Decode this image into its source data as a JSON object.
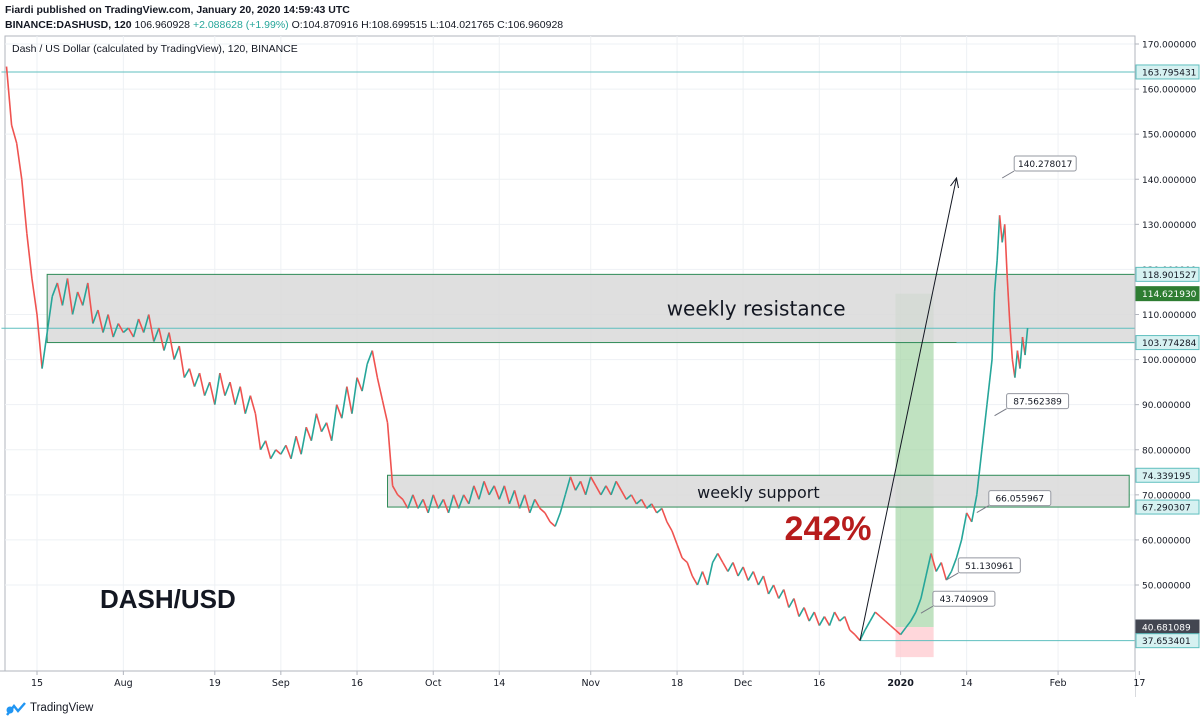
{
  "header": {
    "published": "Fiardi published on TradingView.com, January 20, 2020 14:59:43 UTC",
    "symbol": "BINANCE:DASHUSD, 120",
    "last": "106.960928",
    "change": "+2.088628 (+1.99%)",
    "open": "O:104.870916",
    "high": "H:108.699515",
    "low": "L:104.021765",
    "close": "C:106.960928"
  },
  "footer": {
    "brand": "TradingView"
  },
  "chart_data": {
    "type": "line",
    "title": "Dash / US Dollar (calculated by TradingView), 120, BINANCE",
    "pair_label": "DASH/USD",
    "ylim": [
      34,
      172
    ],
    "x_ticks": [
      {
        "label": "15",
        "day": 0
      },
      {
        "label": "Aug",
        "day": 17
      },
      {
        "label": "19",
        "day": 35
      },
      {
        "label": "Sep",
        "day": 48
      },
      {
        "label": "16",
        "day": 63
      },
      {
        "label": "Oct",
        "day": 78
      },
      {
        "label": "14",
        "day": 91
      },
      {
        "label": "Nov",
        "day": 109
      },
      {
        "label": "18",
        "day": 126
      },
      {
        "label": "Dec",
        "day": 139
      },
      {
        "label": "16",
        "day": 154
      },
      {
        "label": "2020",
        "day": 170
      },
      {
        "label": "14",
        "day": 183
      },
      {
        "label": "Feb",
        "day": 201
      },
      {
        "label": "17",
        "day": 217
      }
    ],
    "y_ticks": [
      170,
      160,
      150,
      140,
      130,
      120,
      110,
      100,
      90,
      80,
      70,
      60,
      50
    ],
    "y_tick_labels": [
      "170.000000",
      "160.000000",
      "150.000000",
      "140.000000",
      "130.000000",
      "120.000000",
      "110.000000",
      "100.000000",
      "90.000000",
      "80.000000",
      "70.000000",
      "60.000000",
      "50.000000"
    ],
    "series": [
      {
        "points": [
          [
            -6,
            165
          ],
          [
            -5,
            152
          ],
          [
            -4,
            148
          ],
          [
            -3,
            140
          ],
          [
            -2,
            128
          ],
          [
            -1,
            118
          ],
          [
            0,
            110
          ],
          [
            1,
            98
          ],
          [
            2,
            106
          ],
          [
            3,
            114
          ],
          [
            4,
            117
          ],
          [
            5,
            112
          ],
          [
            6,
            118
          ],
          [
            7,
            110
          ],
          [
            8,
            115
          ],
          [
            9,
            112
          ],
          [
            10,
            117
          ],
          [
            11,
            108
          ],
          [
            12,
            111
          ],
          [
            13,
            106
          ],
          [
            14,
            110
          ],
          [
            15,
            105
          ],
          [
            16,
            108
          ],
          [
            17,
            106
          ],
          [
            18,
            107
          ],
          [
            19,
            105
          ],
          [
            20,
            109
          ],
          [
            21,
            106
          ],
          [
            22,
            110
          ],
          [
            23,
            104
          ],
          [
            24,
            107
          ],
          [
            25,
            102
          ],
          [
            26,
            106
          ],
          [
            27,
            100
          ],
          [
            28,
            103
          ],
          [
            29,
            96
          ],
          [
            30,
            98
          ],
          [
            31,
            94
          ],
          [
            32,
            97
          ],
          [
            33,
            92
          ],
          [
            34,
            95
          ],
          [
            35,
            90
          ],
          [
            36,
            97
          ],
          [
            37,
            92
          ],
          [
            38,
            95
          ],
          [
            39,
            90
          ],
          [
            40,
            94
          ],
          [
            41,
            88
          ],
          [
            42,
            92
          ],
          [
            43,
            88
          ],
          [
            44,
            80
          ],
          [
            45,
            82
          ],
          [
            46,
            78
          ],
          [
            47,
            80
          ],
          [
            48,
            79
          ],
          [
            49,
            81
          ],
          [
            50,
            78
          ],
          [
            51,
            83
          ],
          [
            52,
            79
          ],
          [
            53,
            85
          ],
          [
            54,
            82
          ],
          [
            55,
            88
          ],
          [
            56,
            84
          ],
          [
            57,
            86
          ],
          [
            58,
            82
          ],
          [
            59,
            90
          ],
          [
            60,
            87
          ],
          [
            61,
            94
          ],
          [
            62,
            88
          ],
          [
            63,
            96
          ],
          [
            64,
            93
          ],
          [
            65,
            99
          ],
          [
            66,
            102
          ],
          [
            67,
            96
          ],
          [
            68,
            91
          ],
          [
            69,
            86
          ],
          [
            70,
            72
          ],
          [
            71,
            70
          ],
          [
            72,
            69
          ],
          [
            73,
            67
          ],
          [
            74,
            70
          ],
          [
            75,
            67
          ],
          [
            76,
            69
          ],
          [
            77,
            66
          ],
          [
            78,
            70
          ],
          [
            79,
            67
          ],
          [
            80,
            69
          ],
          [
            81,
            66
          ],
          [
            82,
            70
          ],
          [
            83,
            67
          ],
          [
            84,
            70
          ],
          [
            85,
            68
          ],
          [
            86,
            72
          ],
          [
            87,
            69
          ],
          [
            88,
            73
          ],
          [
            89,
            70
          ],
          [
            90,
            72
          ],
          [
            91,
            69
          ],
          [
            92,
            72
          ],
          [
            93,
            68
          ],
          [
            94,
            71
          ],
          [
            95,
            67
          ],
          [
            96,
            70
          ],
          [
            97,
            66
          ],
          [
            98,
            69
          ],
          [
            99,
            67
          ],
          [
            100,
            66
          ],
          [
            101,
            64
          ],
          [
            102,
            63
          ],
          [
            103,
            66
          ],
          [
            104,
            70
          ],
          [
            105,
            74
          ],
          [
            106,
            71
          ],
          [
            107,
            73
          ],
          [
            108,
            70
          ],
          [
            109,
            74
          ],
          [
            110,
            72
          ],
          [
            111,
            70
          ],
          [
            112,
            72
          ],
          [
            113,
            70
          ],
          [
            114,
            73
          ],
          [
            115,
            71
          ],
          [
            116,
            69
          ],
          [
            117,
            70
          ],
          [
            118,
            68
          ],
          [
            119,
            69
          ],
          [
            120,
            67
          ],
          [
            121,
            68
          ],
          [
            122,
            66
          ],
          [
            123,
            67
          ],
          [
            124,
            64
          ],
          [
            125,
            62
          ],
          [
            126,
            59
          ],
          [
            127,
            56
          ],
          [
            128,
            55
          ],
          [
            129,
            52
          ],
          [
            130,
            50
          ],
          [
            131,
            53
          ],
          [
            132,
            50
          ],
          [
            133,
            55
          ],
          [
            134,
            57
          ],
          [
            135,
            55
          ],
          [
            136,
            53
          ],
          [
            137,
            55
          ],
          [
            138,
            52
          ],
          [
            139,
            54
          ],
          [
            140,
            51
          ],
          [
            141,
            53
          ],
          [
            142,
            50
          ],
          [
            143,
            52
          ],
          [
            144,
            48
          ],
          [
            145,
            50
          ],
          [
            146,
            47
          ],
          [
            147,
            49
          ],
          [
            148,
            45
          ],
          [
            149,
            47
          ],
          [
            150,
            43
          ],
          [
            151,
            45
          ],
          [
            152,
            42
          ],
          [
            153,
            44
          ],
          [
            154,
            41
          ],
          [
            155,
            43
          ],
          [
            156,
            41
          ],
          [
            157,
            44
          ],
          [
            158,
            42
          ],
          [
            159,
            43
          ],
          [
            160,
            40
          ],
          [
            161,
            39
          ],
          [
            162,
            37.7
          ],
          [
            163,
            40
          ],
          [
            164,
            42
          ],
          [
            165,
            44
          ],
          [
            166,
            43
          ],
          [
            167,
            42
          ],
          [
            168,
            41
          ],
          [
            169,
            40
          ],
          [
            170,
            39
          ],
          [
            171,
            40.5
          ],
          [
            172,
            42
          ],
          [
            173,
            44
          ],
          [
            174,
            47
          ],
          [
            175,
            52
          ],
          [
            176,
            57
          ],
          [
            177,
            53
          ],
          [
            178,
            55
          ],
          [
            179,
            51.1
          ],
          [
            180,
            53
          ],
          [
            181,
            56
          ],
          [
            182,
            60
          ],
          [
            183,
            66
          ],
          [
            184,
            64
          ],
          [
            185,
            70
          ],
          [
            186,
            80
          ],
          [
            187,
            90
          ],
          [
            188,
            100
          ],
          [
            188.5,
            115
          ],
          [
            189,
            122
          ],
          [
            189.5,
            132
          ],
          [
            190,
            126
          ],
          [
            190.5,
            130
          ],
          [
            191,
            118
          ],
          [
            191.5,
            108
          ],
          [
            192,
            100
          ],
          [
            192.5,
            96
          ],
          [
            193,
            102
          ],
          [
            193.5,
            98
          ],
          [
            194,
            105
          ],
          [
            194.5,
            101
          ],
          [
            195,
            107
          ]
        ]
      }
    ],
    "zones": [
      {
        "label": "weekly resistance",
        "low": 103.774284,
        "high": 118.901527,
        "from_day": 2,
        "to_day": 226
      },
      {
        "label": "weekly support",
        "low": 67.290307,
        "high": 74.339195,
        "from_day": 69,
        "to_day": 215
      }
    ],
    "horizontal_lines": [
      {
        "value": 163.795431,
        "from_day": -7,
        "to_day": 226
      },
      {
        "value": 106.960928,
        "from_day": -7,
        "to_day": 226
      },
      {
        "value": 103.774284,
        "from_day": 181,
        "to_day": 226
      },
      {
        "value": 37.653401,
        "from_day": 162,
        "to_day": 226
      }
    ],
    "price_labels": [
      {
        "value": 163.795431,
        "text": "163.795431",
        "style": "line"
      },
      {
        "value": 118.901527,
        "text": "118.901527",
        "style": "line"
      },
      {
        "value": 114.62193,
        "text": "114.621930",
        "style": "green"
      },
      {
        "value": 103.774284,
        "text": "103.774284",
        "style": "line"
      },
      {
        "value": 74.339195,
        "text": "74.339195",
        "style": "line"
      },
      {
        "value": 67.290307,
        "text": "67.290307",
        "style": "line"
      },
      {
        "value": 40.681089,
        "text": "40.681089",
        "style": "dark"
      },
      {
        "value": 37.653401,
        "text": "37.653401",
        "style": "line"
      }
    ],
    "callouts": [
      {
        "text": "140.278017",
        "day": 190,
        "value": 140.278017
      },
      {
        "text": "87.562389",
        "day": 188.5,
        "value": 87.562389
      },
      {
        "text": "66.055967",
        "day": 185,
        "value": 66.055967
      },
      {
        "text": "51.130961",
        "day": 179,
        "value": 51.130961
      },
      {
        "text": "43.740909",
        "day": 174,
        "value": 43.740909
      }
    ],
    "projection": {
      "from_day": 169,
      "to_day": 176.5,
      "top": 114.62193,
      "base": 40.681089,
      "bottom": 34
    },
    "trend_arrow": {
      "from_day": 162,
      "from_value": 37.653401,
      "to_day": 181,
      "to_value": 140.278017
    },
    "percent_annotation": "242%",
    "annotation_colors": {
      "percent": "#b71c1c",
      "projection_up": "#a5d6a7",
      "projection_down": "#ffcdd2",
      "zone_fill": "#d9d9d9",
      "line": "#5fbfbf",
      "candle_up": "#26a69a",
      "candle_down": "#ef5350"
    }
  }
}
